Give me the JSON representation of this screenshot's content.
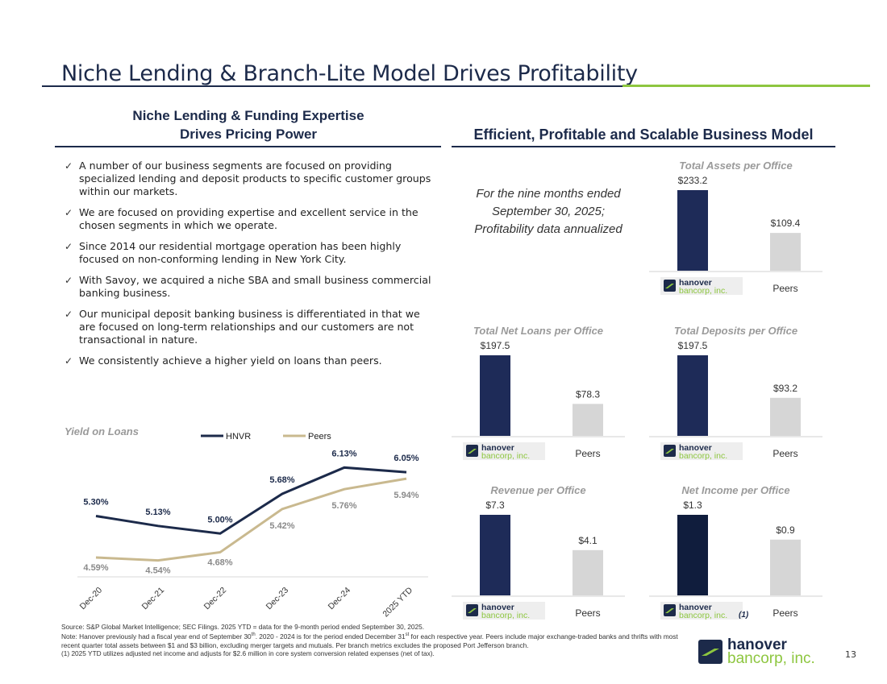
{
  "header": {
    "title": "Niche Lending & Branch-Lite Model Drives Profitability"
  },
  "left_section": {
    "heading_line1": "Niche Lending & Funding Expertise",
    "heading_line2": "Drives Pricing Power",
    "bullets": [
      "A number of our business segments are focused on providing specialized lending and deposit products to specific customer groups within our markets.",
      "We are focused on providing expertise and excellent service in the chosen segments in which we operate.",
      "Since 2014 our residential mortgage operation has been highly focused on non-conforming lending in New York City.",
      "With Savoy, we acquired a niche SBA and small business commercial banking business.",
      "Our municipal deposit banking business is differentiated in that we are focused on long-term relationships and our customers are not transactional in nature.",
      "We consistently achieve a higher yield on loans than peers."
    ],
    "check_symbol": "✓"
  },
  "right_section": {
    "heading": "Efficient, Profitable and Scalable Business Model",
    "note": "For the nine months ended September 30, 2025; Profitability data annualized"
  },
  "logo": {
    "line1": "hanover",
    "line2": "bancorp, inc."
  },
  "footnote_marker": "(1)",
  "colors": {
    "navy": "#1c2a4a",
    "bar_navy": "#1e2b58",
    "bar_dark": "#101d3d",
    "peer_gray": "#d6d6d6",
    "peer_tan": "#c9b98f",
    "green": "#8dc63f"
  },
  "chart_data": [
    {
      "type": "line",
      "title": "Yield on Loans",
      "categories": [
        "Dec-20",
        "Dec-21",
        "Dec-22",
        "Dec-23",
        "Dec-24",
        "2025 YTD"
      ],
      "series": [
        {
          "name": "HNVR",
          "values": [
            5.3,
            5.13,
            5.0,
            5.68,
            6.13,
            6.05
          ],
          "labels": [
            "5.30%",
            "5.13%",
            "5.00%",
            "5.68%",
            "6.13%",
            "6.05%"
          ]
        },
        {
          "name": "Peers",
          "values": [
            4.59,
            4.54,
            4.68,
            5.42,
            5.76,
            5.94
          ],
          "labels": [
            "4.59%",
            "4.54%",
            "4.68%",
            "5.42%",
            "5.76%",
            "5.94%"
          ]
        }
      ],
      "ylim": [
        4.3,
        6.3
      ],
      "legend": "top"
    },
    {
      "type": "bar",
      "title": "Total Assets per Office",
      "categories": [
        "Hanover",
        "Peers"
      ],
      "values": [
        233.2,
        109.4
      ],
      "labels": [
        "$233.2",
        "$109.4"
      ],
      "peer_label": "Peers"
    },
    {
      "type": "bar",
      "title": "Total Net Loans per Office",
      "categories": [
        "Hanover",
        "Peers"
      ],
      "values": [
        197.5,
        78.3
      ],
      "labels": [
        "$197.5",
        "$78.3"
      ],
      "peer_label": "Peers"
    },
    {
      "type": "bar",
      "title": "Total Deposits per Office",
      "categories": [
        "Hanover",
        "Peers"
      ],
      "values": [
        197.5,
        93.2
      ],
      "labels": [
        "$197.5",
        "$93.2"
      ],
      "peer_label": "Peers"
    },
    {
      "type": "bar",
      "title": "Revenue per Office",
      "categories": [
        "Hanover",
        "Peers"
      ],
      "values": [
        7.3,
        4.1
      ],
      "labels": [
        "$7.3",
        "$4.1"
      ],
      "peer_label": "Peers"
    },
    {
      "type": "bar",
      "title": "Net Income per Office",
      "categories": [
        "Hanover",
        "Peers"
      ],
      "values": [
        1.3,
        0.9
      ],
      "labels": [
        "$1.3",
        "$0.9"
      ],
      "peer_label": "Peers"
    }
  ],
  "footnotes": {
    "line1": "Source: S&P Global Market Intelligence; SEC Filings. 2025 YTD = data for the 9-month period ended September 30, 2025.",
    "line2_a": "Note: Hanover previously had a fiscal year end of September 30",
    "line2_sup1": "th",
    "line2_b": ". 2020 - 2024 is for the period ended December 31",
    "line2_sup2": "st",
    "line2_c": " for each respective year. Peers include major exchange-traded banks and thrifts with most recent quarter total assets between $1 and $3 billion, excluding merger targets and mutuals. Per branch metrics excludes the proposed Port Jefferson branch.",
    "line3": "(1) 2025 YTD utilizes adjusted net income and adjusts for $2.6 million in core system conversion related expenses (net of tax)."
  },
  "page_number": "13"
}
